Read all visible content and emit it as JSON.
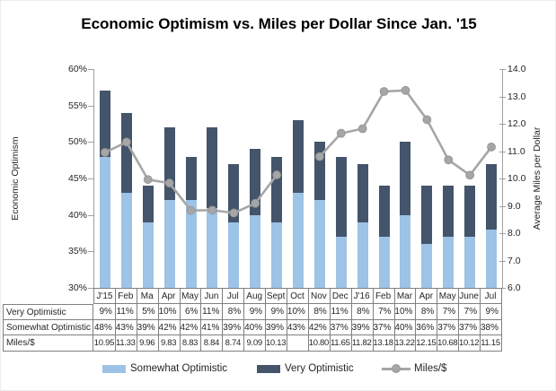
{
  "title": "Economic Optimism vs. Miles per Dollar Since Jan. '15",
  "chart_data": {
    "type": "combo: stacked-bar + line",
    "categories": [
      "J'15",
      "Feb",
      "Ma",
      "Apr",
      "May",
      "Jun",
      "Jul",
      "Aug",
      "Sept",
      "Oct",
      "Nov",
      "Dec",
      "J'16",
      "Feb",
      "Mar",
      "Apr",
      "May",
      "June",
      "Jul"
    ],
    "series": [
      {
        "name": "Somewhat Optimistic",
        "type": "bar",
        "stack": "bottom",
        "color": "#9DC3E6",
        "values": [
          48,
          43,
          39,
          42,
          42,
          41,
          39,
          40,
          39,
          43,
          42,
          37,
          39,
          37,
          40,
          36,
          37,
          37,
          38
        ],
        "unit": "%"
      },
      {
        "name": "Very Optimistic",
        "type": "bar",
        "stack": "top",
        "color": "#44546A",
        "values": [
          9,
          11,
          5,
          10,
          6,
          11,
          8,
          9,
          9,
          10,
          8,
          11,
          8,
          7,
          10,
          8,
          7,
          7,
          9
        ],
        "unit": "%"
      },
      {
        "name": "Miles/$",
        "type": "line",
        "axis": "right",
        "color": "#A6A6A6",
        "values": [
          10.95,
          11.33,
          9.96,
          9.83,
          8.83,
          8.84,
          8.74,
          9.09,
          10.13,
          null,
          10.8,
          11.65,
          11.82,
          13.18,
          13.22,
          12.15,
          10.68,
          10.12,
          11.15
        ]
      }
    ],
    "left_axis": {
      "title": "Economic Optimism",
      "min": 30,
      "max": 60,
      "step": 5,
      "tick_labels": [
        "60%",
        "55%",
        "50%",
        "45%",
        "40%",
        "35%",
        "30%"
      ]
    },
    "right_axis": {
      "title": "Average Miles per Dollar",
      "min": 6,
      "max": 14,
      "step": 1,
      "tick_labels": [
        "14.0",
        "13.0",
        "12.0",
        "11.0",
        "10.0",
        "9.0",
        "8.0",
        "7.0",
        "6.0"
      ]
    },
    "grid": false,
    "legend_position": "bottom",
    "table": {
      "rows": [
        {
          "label": "Very Optimistic",
          "cells": [
            "9%",
            "11%",
            "5%",
            "10%",
            "6%",
            "11%",
            "8%",
            "9%",
            "9%",
            "10%",
            "8%",
            "11%",
            "8%",
            "7%",
            "10%",
            "8%",
            "7%",
            "7%",
            "9%"
          ]
        },
        {
          "label": "Somewhat Optimistic",
          "cells": [
            "48%",
            "43%",
            "39%",
            "42%",
            "42%",
            "41%",
            "39%",
            "40%",
            "39%",
            "43%",
            "42%",
            "37%",
            "39%",
            "37%",
            "40%",
            "36%",
            "37%",
            "37%",
            "38%"
          ]
        },
        {
          "label": "Miles/$",
          "cells": [
            "10.95",
            "11.33",
            "9.96",
            "9.83",
            "8.83",
            "8.84",
            "8.74",
            "9.09",
            "10.13",
            "",
            "10.80",
            "11.65",
            "11.82",
            "13.18",
            "13.22",
            "12.15",
            "10.68",
            "10.12",
            "11.15"
          ]
        }
      ]
    },
    "legend": [
      {
        "label": "Somewhat Optimistic",
        "marker": "bar",
        "color": "#9DC3E6"
      },
      {
        "label": "Very Optimistic",
        "marker": "bar",
        "color": "#44546A"
      },
      {
        "label": "Miles/$",
        "marker": "line-circle",
        "color": "#A6A6A6"
      }
    ]
  }
}
